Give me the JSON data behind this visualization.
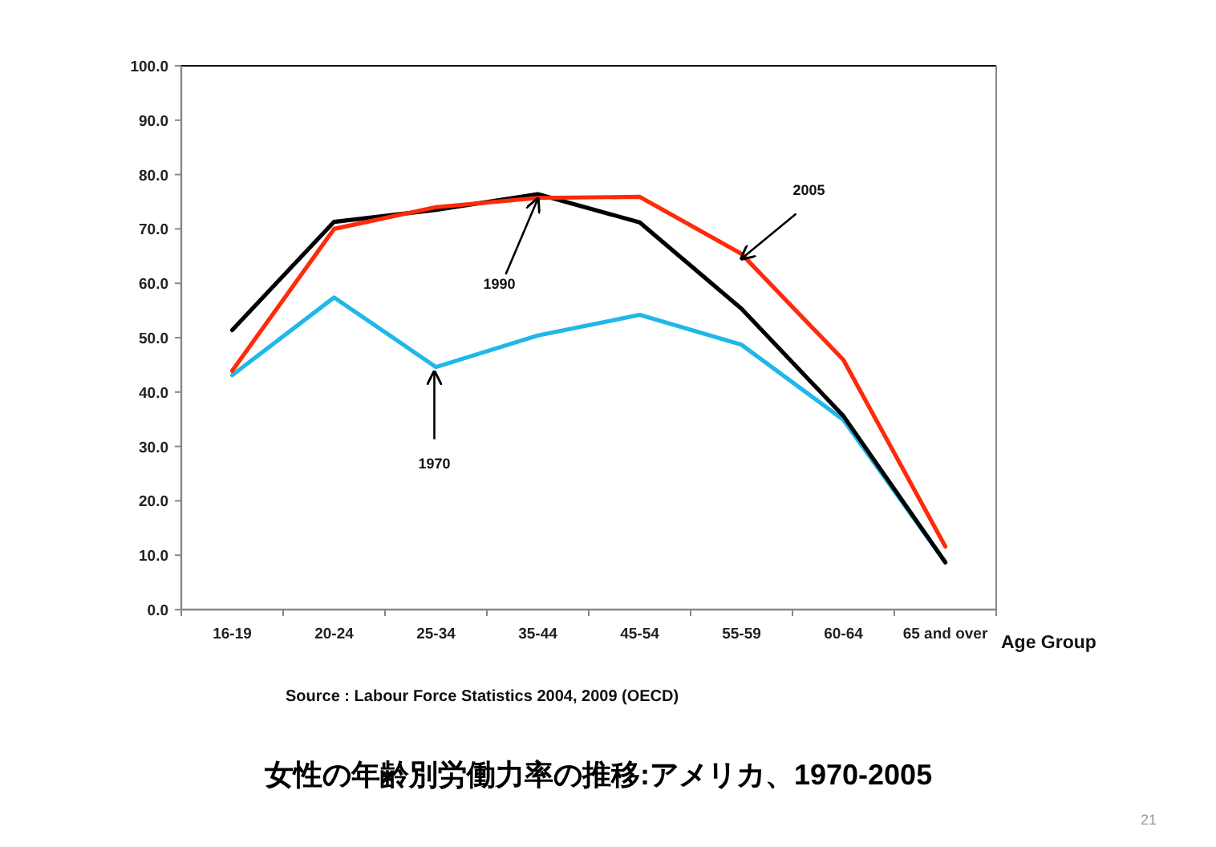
{
  "chart_data": {
    "type": "line",
    "title": "女性の年齢別労働力率の推移:アメリカ、1970-2005",
    "xlabel": "Age Group",
    "categories": [
      "16-19",
      "20-24",
      "25-34",
      "35-44",
      "45-54",
      "55-59",
      "60-64",
      "65 and over"
    ],
    "series": [
      {
        "color": "#1fb8e8",
        "values": [
          43.1,
          57.4,
          44.6,
          50.4,
          54.2,
          48.7,
          34.9,
          8.7
        ]
      },
      {
        "color": "#000000",
        "values": [
          51.4,
          71.3,
          73.5,
          76.4,
          71.2,
          55.3,
          35.6,
          8.7
        ]
      },
      {
        "color": "#ff2a0a",
        "values": [
          43.9,
          70.0,
          74.0,
          75.7,
          75.9,
          65.4,
          45.9,
          11.6
        ]
      }
    ],
    "ylim": [
      0,
      100
    ],
    "yticks": [
      {
        "value": 0,
        "label": "0.0"
      },
      {
        "value": 10,
        "label": "10.0"
      },
      {
        "value": 20,
        "label": "20.0"
      },
      {
        "value": 30,
        "label": "30.0"
      },
      {
        "value": 40,
        "label": "40.0"
      },
      {
        "value": 50,
        "label": "50.0"
      },
      {
        "value": 60,
        "label": "60.0"
      },
      {
        "value": 70,
        "label": "70.0"
      },
      {
        "value": 80,
        "label": "80.0"
      },
      {
        "value": 90,
        "label": "90.0"
      },
      {
        "value": 100,
        "label": "100.0"
      }
    ],
    "grid": false,
    "marker": "none",
    "line_style": "solid",
    "annotations": [
      {
        "text": "1970",
        "x": "25-34",
        "y": 44.6
      },
      {
        "text": "1990",
        "x": "35-44",
        "y": 76.4
      },
      {
        "text": "2005",
        "x": "55-59",
        "y": 65.4
      },
      "Source : Labour Force Statistics 2004, 2009 (OECD)",
      "21"
    ]
  }
}
